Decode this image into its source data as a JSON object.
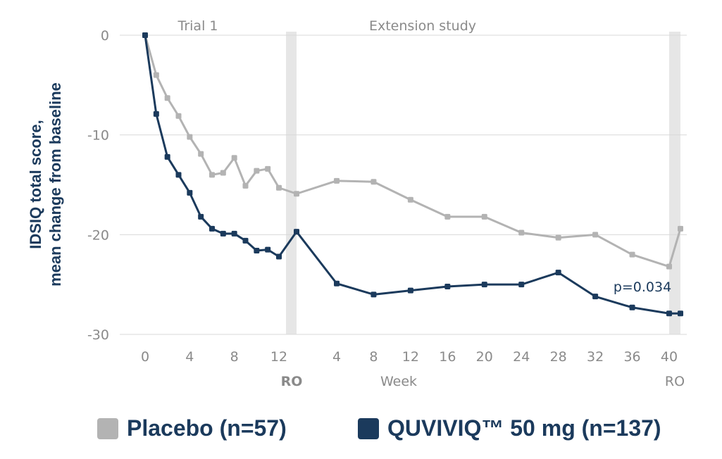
{
  "chart_data": {
    "type": "line",
    "ylabel_line1": "IDSIQ total score,",
    "ylabel_line2": "mean change from baseline",
    "xlabel": "Week",
    "ylim": [
      -30,
      0
    ],
    "yticks": [
      "0",
      "-10",
      "-20",
      "-30"
    ],
    "yticks_values": [
      0,
      -10,
      -20,
      -30
    ],
    "sections": [
      "Trial 1",
      "Extension study"
    ],
    "ro_labels": [
      "RO",
      "RO"
    ],
    "trial1_ticks": [
      "0",
      "4",
      "8",
      "12"
    ],
    "extension_ticks": [
      "4",
      "8",
      "12",
      "16",
      "20",
      "24",
      "28",
      "32",
      "36",
      "40"
    ],
    "annotation": "p=0.034",
    "colors": {
      "placebo": "#b3b3b3",
      "quviviq": "#1b3a5c",
      "shade": "#e6e6e6"
    },
    "trial1_weeks": [
      0,
      1,
      2,
      3,
      4,
      5,
      6,
      7,
      8,
      9,
      10,
      11,
      12
    ],
    "extension_weeks": [
      4,
      8,
      12,
      16,
      20,
      24,
      28,
      32,
      36,
      40
    ],
    "series": [
      {
        "name": "Placebo (n=57)",
        "trial1": [
          0,
          -4.0,
          -6.3,
          -8.1,
          -10.2,
          -11.9,
          -14.0,
          -13.8,
          -12.3,
          -15.1,
          -13.6,
          -13.4,
          -15.3
        ],
        "trial1_ro": -15.9,
        "extension": [
          -14.6,
          -14.7,
          -16.5,
          -18.2,
          -18.2,
          -19.8,
          -20.3,
          -20.0,
          -22.0,
          -23.2
        ],
        "extension_ro": -19.4
      },
      {
        "name": "QUVIVIQ™ 50 mg (n=137)",
        "trial1": [
          0,
          -7.9,
          -12.2,
          -14.0,
          -15.8,
          -18.2,
          -19.4,
          -19.9,
          -19.9,
          -20.6,
          -21.6,
          -21.5,
          -22.2
        ],
        "trial1_ro": -19.7,
        "extension": [
          -24.9,
          -26.0,
          -25.6,
          -25.2,
          -25.0,
          -25.0,
          -23.8,
          -26.2,
          -27.3,
          -27.9
        ],
        "extension_ro": -27.9
      }
    ]
  }
}
